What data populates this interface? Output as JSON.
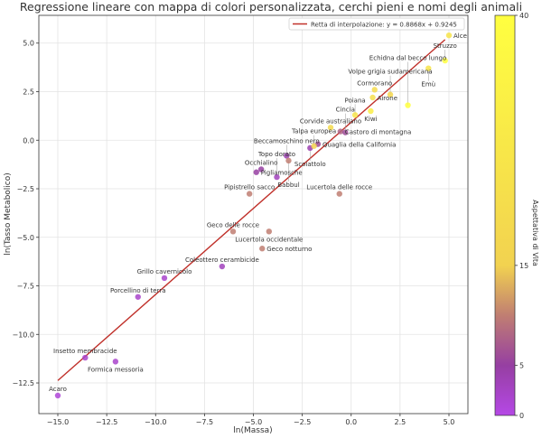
{
  "chart_data": {
    "type": "scatter",
    "title": "Regressione lineare con mappa di colori personalizzata, cerchi pieni e nomi degli animali",
    "xlabel": "ln(Massa)",
    "ylabel": "ln(Tasso Metabolico)",
    "xlim": [
      -15.97,
      5.97
    ],
    "ylim": [
      -14.08,
      6.43
    ],
    "xticks": [
      -15.0,
      -12.5,
      -10.0,
      -7.5,
      -5.0,
      -2.5,
      0.0,
      2.5,
      5.0
    ],
    "xtick_labels": [
      "−15.0",
      "−12.5",
      "−10.0",
      "−7.5",
      "−5.0",
      "−2.5",
      "0.0",
      "2.5",
      "5.0"
    ],
    "yticks": [
      5.0,
      2.5,
      0.0,
      -2.5,
      -5.0,
      -7.5,
      -10.0,
      -12.5
    ],
    "ytick_labels": [
      "5.0",
      "2.5",
      "0.0",
      "−2.5",
      "−5.0",
      "−7.5",
      "−10.0",
      "−12.5"
    ],
    "grid": true,
    "legend": {
      "position": "top-right",
      "label": "Retta di interpolazione: y = 0.8868x + 0.9245"
    },
    "regression": {
      "slope": 0.8868,
      "intercept": 0.9245,
      "x_range": [
        -15.0,
        4.8
      ],
      "color": "#c0302a"
    },
    "colorbar": {
      "label": "Aspettativa di Vita",
      "range": [
        0,
        40
      ],
      "ticks": [
        0,
        5,
        15,
        40
      ],
      "tick_labels": [
        "0",
        "5",
        "15",
        "40"
      ],
      "stops": [
        [
          0,
          "#b548e6"
        ],
        [
          5,
          "#963fa2"
        ],
        [
          10,
          "#c07e72"
        ],
        [
          15,
          "#f2d250"
        ],
        [
          40,
          "#ffff40"
        ]
      ]
    },
    "points": [
      {
        "name": "Acaro",
        "x": -15.0,
        "y": -13.15,
        "life": 1
      },
      {
        "name": "Insetto membracide",
        "x": -13.6,
        "y": -11.2,
        "life": 2
      },
      {
        "name": "Formica messoria",
        "x": -12.05,
        "y": -11.4,
        "life": 2
      },
      {
        "name": "Porcellino di terra",
        "x": -10.9,
        "y": -8.07,
        "life": 2
      },
      {
        "name": "Grillo cavernicolo",
        "x": -9.55,
        "y": -7.1,
        "life": 2
      },
      {
        "name": "Coleottero cerambicide",
        "x": -6.6,
        "y": -6.5,
        "life": 3
      },
      {
        "name": "Geco delle rocce",
        "x": -6.04,
        "y": -4.7,
        "life": 10
      },
      {
        "name": "Lucertola occidentale",
        "x": -4.2,
        "y": -4.7,
        "life": 10
      },
      {
        "name": "Geco notturno",
        "x": -4.55,
        "y": -5.58,
        "life": 10
      },
      {
        "name": "Pipistrello sacco",
        "x": -5.2,
        "y": -2.76,
        "life": 10
      },
      {
        "name": "Lucertola delle rocce",
        "x": -0.6,
        "y": -2.76,
        "life": 10
      },
      {
        "name": "Occhialino",
        "x": -4.6,
        "y": -1.5,
        "life": 5
      },
      {
        "name": "Pigliamosche",
        "x": -4.85,
        "y": -1.65,
        "life": 5
      },
      {
        "name": "Topo dorato",
        "x": -3.8,
        "y": -1.9,
        "life": 3
      },
      {
        "name": "Beccamoschino nero",
        "x": -3.3,
        "y": -0.8,
        "life": 4
      },
      {
        "name": "Babbul",
        "x": -3.2,
        "y": -1.05,
        "life": 10
      },
      {
        "name": "Quaglia della California",
        "x": -1.7,
        "y": -0.2,
        "life": 6
      },
      {
        "name": "Scoiattolo",
        "x": -2.1,
        "y": -0.4,
        "life": 4
      },
      {
        "name": "Talpa europea",
        "x": -1.9,
        "y": -0.3,
        "life": 15
      },
      {
        "name": "Corvide australiano",
        "x": -1.05,
        "y": 0.65,
        "life": 20
      },
      {
        "name": "Castoro di montagna",
        "x": -0.55,
        "y": 0.45,
        "life": 8
      },
      {
        "name": "Cincia",
        "x": -0.3,
        "y": 0.4,
        "life": 6
      },
      {
        "name": "Poiana",
        "x": 0.2,
        "y": 1.3,
        "life": 25
      },
      {
        "name": "Kiwi",
        "x": 1.0,
        "y": 1.5,
        "life": 30
      },
      {
        "name": "Cormorano",
        "x": 1.2,
        "y": 2.6,
        "life": 20
      },
      {
        "name": "Airone",
        "x": 1.1,
        "y": 2.2,
        "life": 22
      },
      {
        "name": "Volpe grigia sudamericana",
        "x": 2.0,
        "y": 2.35,
        "life": 18
      },
      {
        "name": "Echidna dal becco lungo",
        "x": 2.9,
        "y": 1.8,
        "life": 40
      },
      {
        "name": "Emù",
        "x": 3.95,
        "y": 3.7,
        "life": 25
      },
      {
        "name": "Struzzo",
        "x": 4.8,
        "y": 4.1,
        "life": 40
      },
      {
        "name": "Alce",
        "x": 5.0,
        "y": 5.4,
        "life": 25
      }
    ]
  }
}
